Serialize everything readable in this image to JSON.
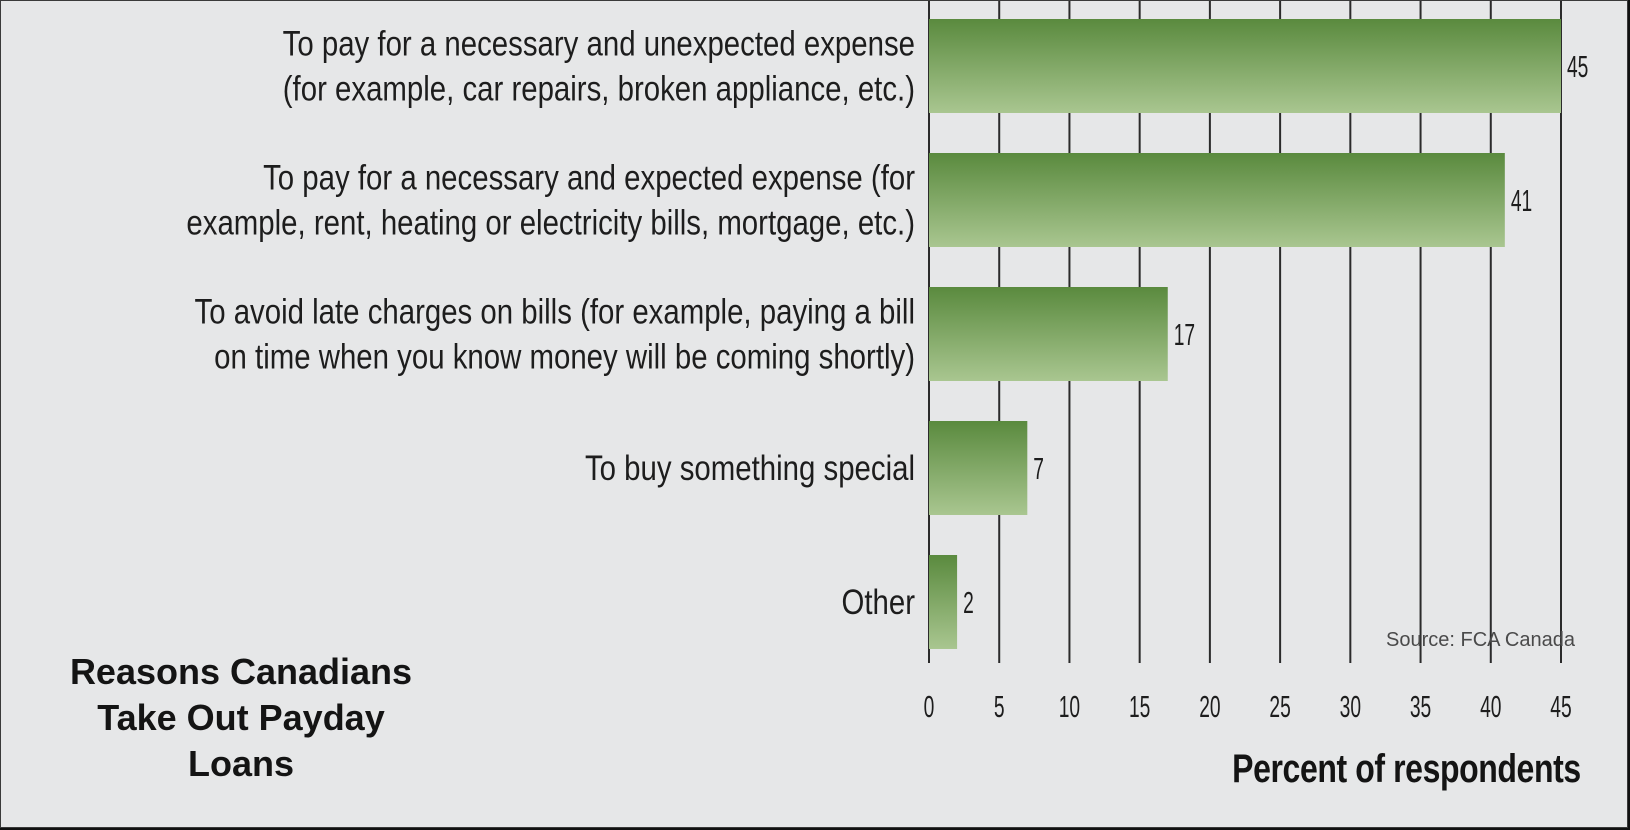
{
  "chart_data": {
    "type": "bar",
    "orientation": "horizontal",
    "title_lines": [
      "Reasons Canadians",
      "Take Out Payday",
      "Loans"
    ],
    "xlabel": "Percent of respondents",
    "source": "Source: FCA Canada",
    "xlim": [
      0,
      45
    ],
    "xticks": [
      0,
      5,
      10,
      15,
      20,
      25,
      30,
      35,
      40,
      45
    ],
    "grid": true,
    "categories": [
      [
        "To pay for a necessary and unexpected expense",
        "(for example, car repairs, broken appliance, etc.)"
      ],
      [
        "To pay for a necessary and expected expense (for",
        "example, rent, heating or electricity bills, mortgage, etc.)"
      ],
      [
        "To avoid late charges on bills (for example, paying a bill",
        "on time when you know money will be coming shortly)"
      ],
      [
        "To buy something special"
      ],
      [
        "Other"
      ]
    ],
    "values": [
      45,
      41,
      17,
      7,
      2
    ],
    "colors": {
      "bar_top": "#5a8a3e",
      "bar_bottom": "#a9c690",
      "grid": "#2b2b2b",
      "background": "#e6e7e8"
    }
  }
}
